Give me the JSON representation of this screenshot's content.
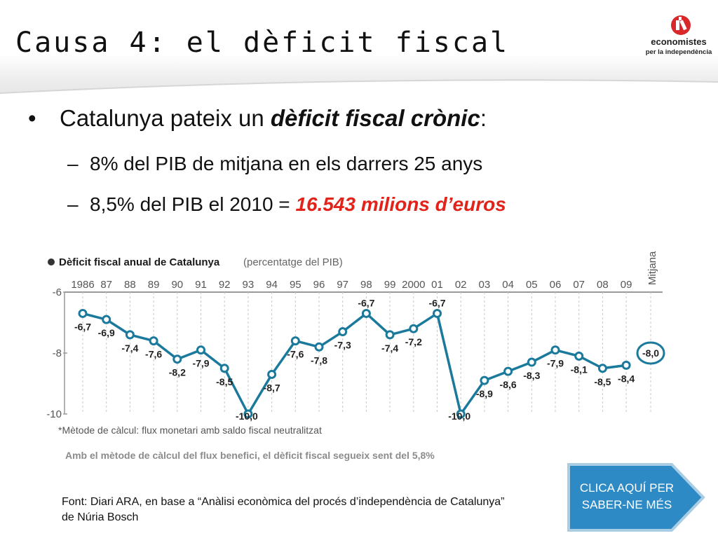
{
  "slide": {
    "title": "Causa 4: el dèficit fiscal"
  },
  "logo": {
    "name": "economistes",
    "tagline": "per la independència"
  },
  "bullets": {
    "main_prefix": "Catalunya pateix un ",
    "main_emphasis": "dèficit fiscal crònic",
    "main_suffix": ":",
    "sub1": "8% del PIB de mitjana en els darrers 25 anys",
    "sub2_prefix": "8,5% del PIB el 2010 = ",
    "sub2_highlight": "16.543 milions d’euros"
  },
  "colors": {
    "line": "#1b7a9c",
    "highlight": "#e2231a",
    "cta_fill": "#2e8ac4",
    "cta_border": "#a9cde3"
  },
  "chart_data": {
    "type": "line",
    "title": "Dèficit fiscal anual de Catalunya",
    "subtitle": "(percentatge del PIB)",
    "categories": [
      "1986",
      "87",
      "88",
      "89",
      "90",
      "91",
      "92",
      "93",
      "94",
      "95",
      "96",
      "97",
      "98",
      "99",
      "2000",
      "01",
      "02",
      "03",
      "04",
      "05",
      "06",
      "07",
      "08",
      "09"
    ],
    "values": [
      -6.7,
      -6.9,
      -7.4,
      -7.6,
      -8.2,
      -7.9,
      -8.5,
      -10.0,
      -8.7,
      -7.6,
      -7.8,
      -7.3,
      -6.7,
      -7.4,
      -7.2,
      -6.7,
      -10.0,
      -8.9,
      -8.6,
      -8.3,
      -7.9,
      -8.1,
      -8.5,
      -8.4
    ],
    "value_labels": [
      "-6,7",
      "-6,9",
      "-7,4",
      "-7,6",
      "-8,2",
      "-7,9",
      "-8,5",
      "-10,0",
      "-8,7",
      "-7,6",
      "-7,8",
      "-7,3",
      "-6,7",
      "-7,4",
      "-7,2",
      "-6,7",
      "-10,0",
      "-8,9",
      "-8,6",
      "-8,3",
      "-7,9",
      "-8,1",
      "-8,5",
      "-8,4"
    ],
    "average_label": "Mitjana",
    "average_value": -8.0,
    "average_value_label": "-8,0",
    "yticks": [
      -6,
      -8,
      -10
    ],
    "ytick_labels": [
      "-6",
      "-8",
      "-10"
    ],
    "ylim": [
      -10,
      -6
    ],
    "grid": true,
    "note": "*Mètode de càlcul: flux monetari amb saldo fiscal neutralitzat"
  },
  "chart_caption": "Amb el mètode de càlcul del flux benefici, el dèficit fiscal segueix sent del 5,8%",
  "source": {
    "line1": "Font: Diari ARA, en base a “Anàlisi econòmica del procés d’independència de Catalunya”",
    "line2": "de Núria Bosch"
  },
  "cta": {
    "line1": "CLICA AQUÍ PER",
    "line2": "SABER-NE MÉS"
  }
}
